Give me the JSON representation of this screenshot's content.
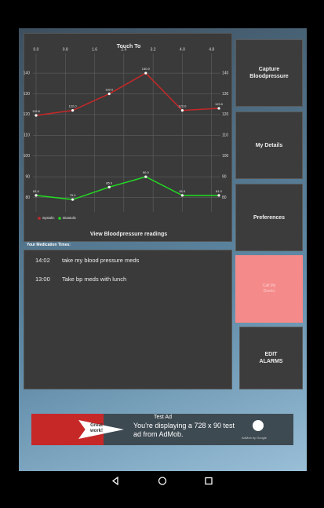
{
  "chart_data": {
    "type": "line",
    "title": "Touch To",
    "caption": "View Bloodpressure readings",
    "x": [
      0,
      1,
      2,
      3,
      4,
      5
    ],
    "xlim": [
      0,
      5
    ],
    "xticks": [
      {
        "value": 0,
        "label": "0.0"
      },
      0.8,
      1.6,
      2.4,
      3.2,
      {
        "value": 4,
        "label": "4.0"
      },
      4.8
    ],
    "ylim": [
      73,
      148
    ],
    "yticks": [
      80,
      90,
      100,
      110,
      120,
      130,
      140
    ],
    "grid": true,
    "series": [
      {
        "name": "Systolic",
        "color": "#c62828",
        "values": [
          119.6,
          122,
          130,
          140,
          122,
          123
        ],
        "value_labels": [
          "119.6",
          "122.0",
          "130.0",
          "140.0",
          "122.0",
          "123.0"
        ]
      },
      {
        "name": "Diastolic",
        "color": "#22dd22",
        "values": [
          81,
          79,
          85,
          90,
          81,
          81
        ],
        "value_labels": [
          "81.0",
          "79.0",
          "85.0",
          "90.0",
          "81.0",
          "81.0"
        ]
      }
    ]
  },
  "medications": {
    "heading": "Your Medication Times:",
    "rows": [
      {
        "time": "14:02",
        "text": "take my blood pressure meds"
      },
      {
        "time": "13:00",
        "text": "Take bp meds with lunch"
      }
    ]
  },
  "buttons": [
    "Capture Bloodpressure",
    "My Details",
    "Preferences",
    "Call My Doctor",
    "EDIT ALARMS"
  ],
  "ad": {
    "title": "Test Ad",
    "text": "You're displaying a 728 x 90 test ad from AdMob.",
    "badge": "Great work!",
    "brand": "AdMob by Google"
  }
}
